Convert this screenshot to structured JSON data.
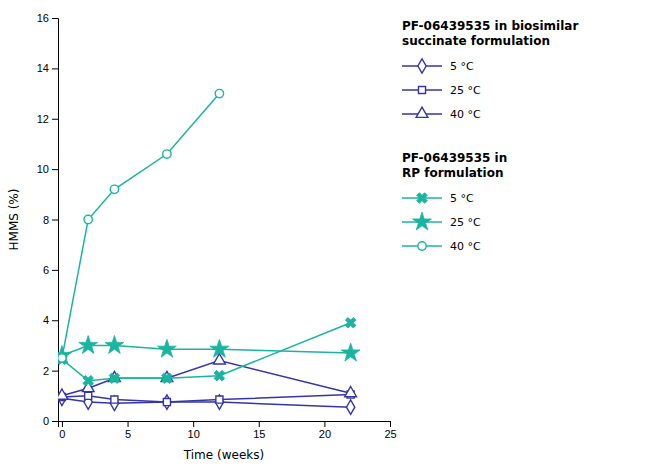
{
  "chart_data": {
    "type": "line",
    "xlabel": "Time (weeks)",
    "ylabel": "HMMS (%)",
    "xlim": [
      -0.3,
      25
    ],
    "ylim": [
      0,
      16
    ],
    "xticks": [
      0,
      5,
      10,
      15,
      20,
      25
    ],
    "yticks": [
      0,
      2,
      4,
      6,
      8,
      10,
      12,
      14,
      16
    ],
    "grid": false,
    "series": [
      {
        "name": "5 °C",
        "group": "PF-06439535 in biosimilar\nsuccinate formulation",
        "color": "#3535a8",
        "marker": "diamond",
        "x": [
          0,
          2,
          4,
          8,
          12,
          22
        ],
        "values": [
          0.9,
          0.75,
          0.7,
          0.75,
          0.75,
          0.55
        ]
      },
      {
        "name": "25 °C",
        "group": "PF-06439535 in biosimilar\nsuccinate formulation",
        "color": "#3535a8",
        "marker": "square",
        "x": [
          0,
          2,
          4,
          8,
          12,
          22
        ],
        "values": [
          0.95,
          1.0,
          0.85,
          0.75,
          0.85,
          1.05
        ]
      },
      {
        "name": "40 °C",
        "group": "PF-06439535 in biosimilar\nsuccinate formulation",
        "color": "#3535a8",
        "marker": "triangle",
        "x": [
          0,
          2,
          4,
          8,
          12,
          22
        ],
        "values": [
          1.0,
          1.3,
          1.7,
          1.7,
          2.4,
          1.1
        ]
      },
      {
        "name": "5 °C",
        "group": "PF-06439535 in\nRP formulation",
        "color": "#1ab5a0",
        "marker": "x",
        "x": [
          0,
          2,
          4,
          8,
          12,
          22
        ],
        "values": [
          2.45,
          1.6,
          1.7,
          1.7,
          1.8,
          3.9
        ]
      },
      {
        "name": "25 °C",
        "group": "PF-06439535 in\nRP formulation",
        "color": "#1ab5a0",
        "marker": "star",
        "x": [
          0,
          2,
          4,
          8,
          12,
          22
        ],
        "values": [
          2.6,
          3.0,
          3.0,
          2.85,
          2.85,
          2.7
        ]
      },
      {
        "name": "40 °C",
        "group": "PF-06439535 in\nRP formulation",
        "color": "#1ab5a0",
        "marker": "circle",
        "x": [
          0,
          2,
          4,
          8,
          12
        ],
        "values": [
          2.5,
          8.0,
          9.2,
          10.6,
          13.0
        ]
      }
    ]
  }
}
